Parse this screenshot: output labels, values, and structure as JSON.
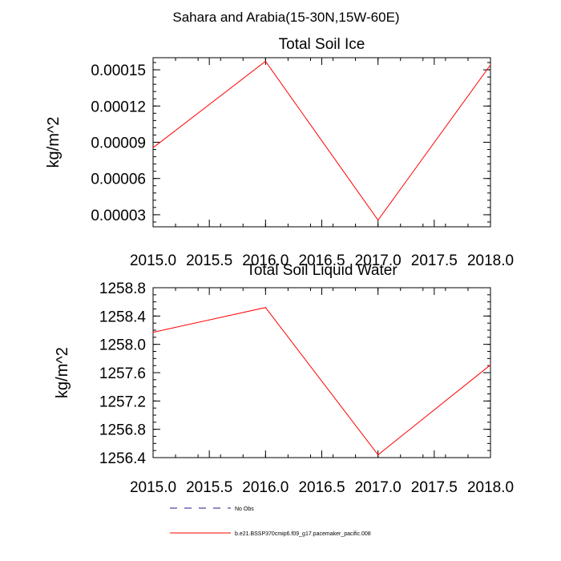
{
  "figure_title": "Sahara and Arabia(15-30N,15W-60E)",
  "legend": {
    "items": [
      {
        "label": "No Obs",
        "color": "#1a1a8c",
        "style": "dashed"
      },
      {
        "label": "b.e21.BSSP370cmip6.f09_g17.pacemaker_pacific.008",
        "color": "#ff0000",
        "style": "solid"
      }
    ]
  },
  "chart_data": [
    {
      "type": "line",
      "title": "Total Soil Ice",
      "ylabel": "kg/m^2",
      "xlabel": "",
      "xlim": [
        2015.0,
        2018.0
      ],
      "ylim": [
        2e-05,
        0.00016
      ],
      "x_ticks": [
        "2015.0",
        "2015.5",
        "2016.0",
        "2016.5",
        "2017.0",
        "2017.5",
        "2018.0"
      ],
      "y_ticks": [
        "0.00003",
        "0.00006",
        "0.00009",
        "0.00012",
        "0.00015"
      ],
      "grid": false,
      "series": [
        {
          "color": "#ff0000",
          "x": [
            2015.0,
            2016.0,
            2017.0,
            2018.0
          ],
          "y": [
            8.55e-05,
            0.000157,
            2.55e-05,
            0.000154
          ]
        }
      ]
    },
    {
      "type": "line",
      "title": "Total Soil Liquid Water",
      "ylabel": "kg/m^2",
      "xlabel": "",
      "xlim": [
        2015.0,
        2018.0
      ],
      "ylim": [
        1256.4,
        1258.8
      ],
      "x_ticks": [
        "2015.0",
        "2015.5",
        "2016.0",
        "2016.5",
        "2017.0",
        "2017.5",
        "2018.0"
      ],
      "y_ticks": [
        "1256.4",
        "1256.8",
        "1257.2",
        "1257.6",
        "1258.0",
        "1258.4",
        "1258.8"
      ],
      "grid": false,
      "series": [
        {
          "color": "#ff0000",
          "x": [
            2015.0,
            2016.0,
            2017.0,
            2018.0
          ],
          "y": [
            1258.17,
            1258.52,
            1256.44,
            1257.71
          ]
        }
      ]
    }
  ]
}
